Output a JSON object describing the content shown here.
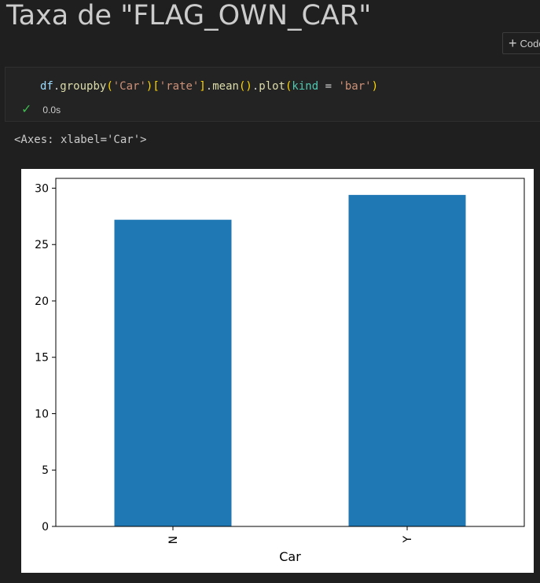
{
  "markdown": {
    "heading": "Taxa de \"FLAG_OWN_CAR\""
  },
  "toolbar": {
    "add_code_label": "Code",
    "plus_icon": "plus-icon"
  },
  "cell": {
    "code_tokens": [
      {
        "text": "df",
        "cls": "tok-var"
      },
      {
        "text": ".",
        "cls": "tok-punc"
      },
      {
        "text": "groupby",
        "cls": "tok-fn"
      },
      {
        "text": "(",
        "cls": "tok-br"
      },
      {
        "text": "'Car'",
        "cls": "tok-str"
      },
      {
        "text": ")",
        "cls": "tok-br"
      },
      {
        "text": "[",
        "cls": "tok-br"
      },
      {
        "text": "'rate'",
        "cls": "tok-str"
      },
      {
        "text": "]",
        "cls": "tok-br"
      },
      {
        "text": ".",
        "cls": "tok-punc"
      },
      {
        "text": "mean",
        "cls": "tok-fn"
      },
      {
        "text": "(",
        "cls": "tok-br"
      },
      {
        "text": ")",
        "cls": "tok-br"
      },
      {
        "text": ".",
        "cls": "tok-punc"
      },
      {
        "text": "plot",
        "cls": "tok-fn"
      },
      {
        "text": "(",
        "cls": "tok-br"
      },
      {
        "text": "kind",
        "cls": "tok-kw"
      },
      {
        "text": " = ",
        "cls": "tok-op"
      },
      {
        "text": "'bar'",
        "cls": "tok-str"
      },
      {
        "text": ")",
        "cls": "tok-br"
      }
    ],
    "status_icon": "check-icon",
    "exec_time": "0.0s"
  },
  "output": {
    "text": "<Axes: xlabel='Car'>"
  },
  "chart_data": {
    "type": "bar",
    "categories": [
      "N",
      "Y"
    ],
    "values": [
      27.2,
      29.4
    ],
    "title": "",
    "xlabel": "Car",
    "ylabel": "",
    "ylim": [
      0,
      30.87
    ],
    "yticks": [
      0,
      5,
      10,
      15,
      20,
      25,
      30
    ],
    "xtick_rotation": 90,
    "bar_color": "#1f77b4",
    "grid": false,
    "legend": false
  }
}
